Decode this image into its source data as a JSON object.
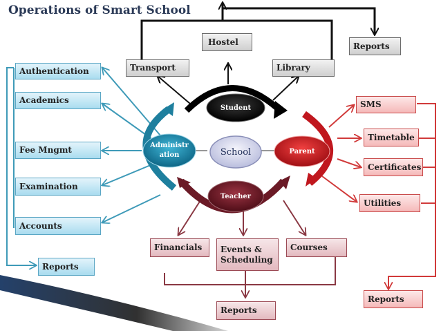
{
  "title": "Operations of Smart School",
  "center": {
    "school": "School",
    "student": "Student",
    "teacher": "Teacher",
    "administration": "Administr ation",
    "parent": "Parent"
  },
  "top_boxes": {
    "hostel": "Hostel",
    "transport": "Transport",
    "library": "Library",
    "reports": "Reports"
  },
  "left_boxes": {
    "authentication": "Authentication",
    "academics": "Academics",
    "fee": "Fee Mngmt",
    "examination": "Examination",
    "accounts": "Accounts",
    "reports": "Reports"
  },
  "right_boxes": {
    "sms": "SMS",
    "timetable": "Timetable",
    "certificates": "Certificates",
    "utilities": "Utilities",
    "reports": "Reports"
  },
  "bottom_boxes": {
    "financials": "Financials",
    "events": "Events & Scheduling",
    "courses": "Courses",
    "reports": "Reports"
  },
  "colors": {
    "admin": "#1e7f9e",
    "parent": "#c0171e",
    "teacher": "#6b1a26",
    "student": "#000000",
    "title": "#2b3a57"
  }
}
